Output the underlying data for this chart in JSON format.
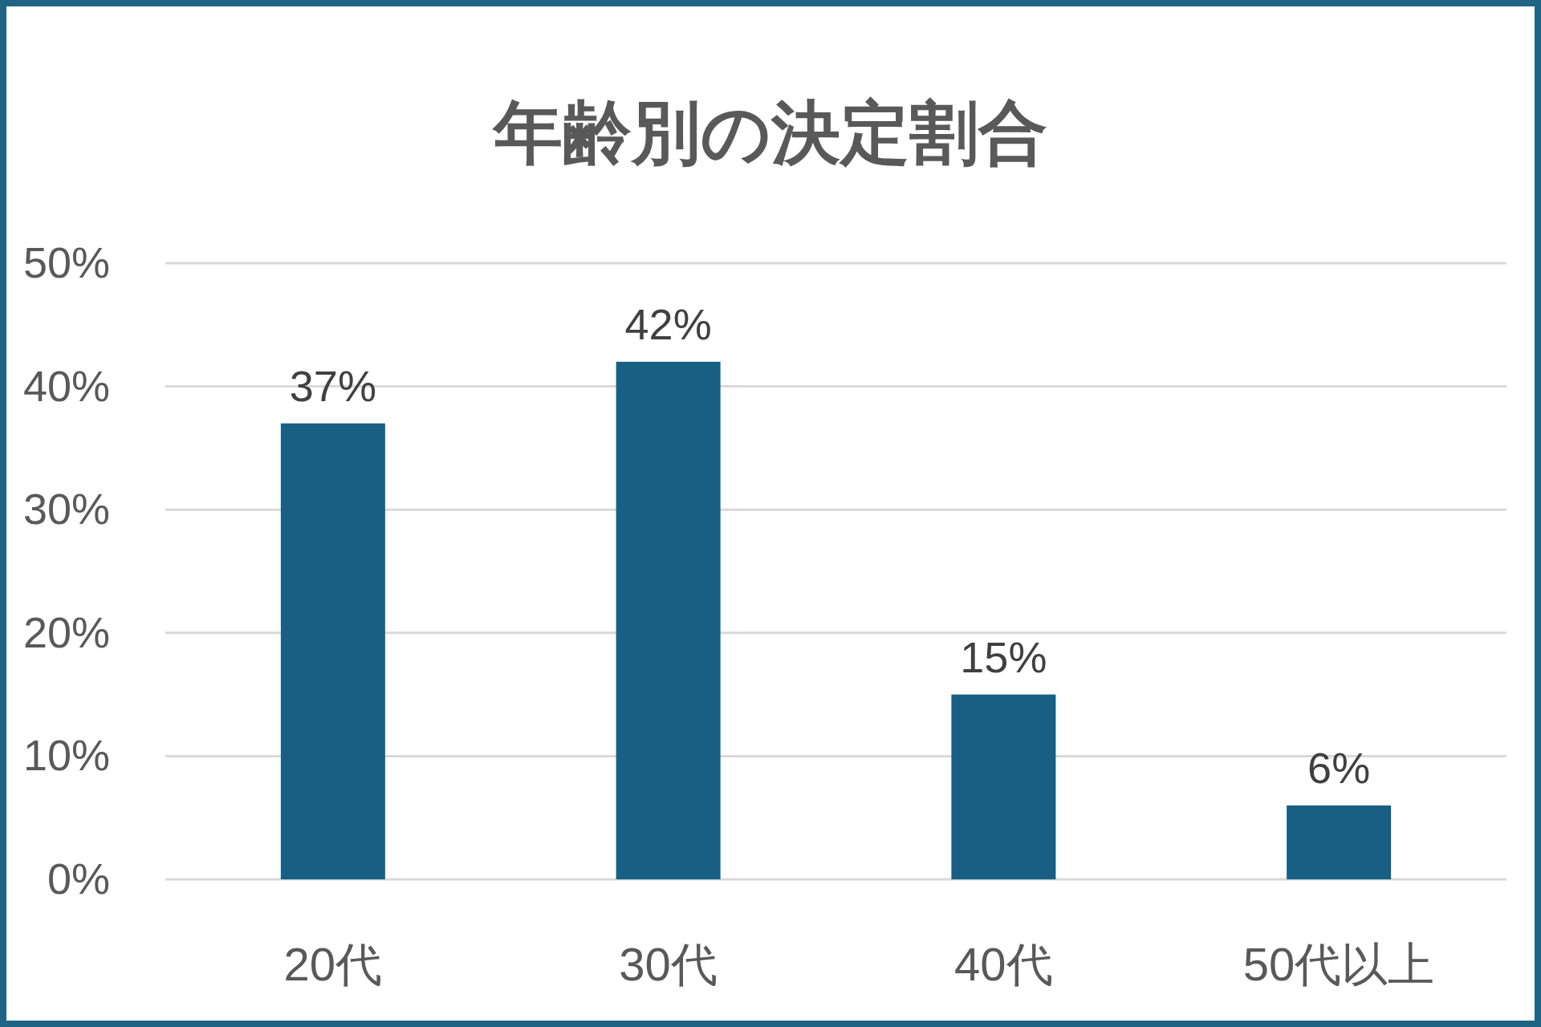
{
  "chart_data": {
    "type": "bar",
    "title": "年齢別の決定割合",
    "categories": [
      "20代",
      "30代",
      "40代",
      "50代以上"
    ],
    "values": [
      37,
      42,
      15,
      6
    ],
    "value_labels": [
      "37%",
      "42%",
      "15%",
      "6%"
    ],
    "color": "#176083",
    "ylim": [
      0,
      50
    ],
    "yticks": [
      {
        "value": 0,
        "label": "0%"
      },
      {
        "value": 10,
        "label": "10%"
      },
      {
        "value": 20,
        "label": "20%"
      },
      {
        "value": 30,
        "label": "30%"
      },
      {
        "value": 40,
        "label": "40%"
      },
      {
        "value": 50,
        "label": "50%"
      }
    ],
    "grid": "y"
  }
}
